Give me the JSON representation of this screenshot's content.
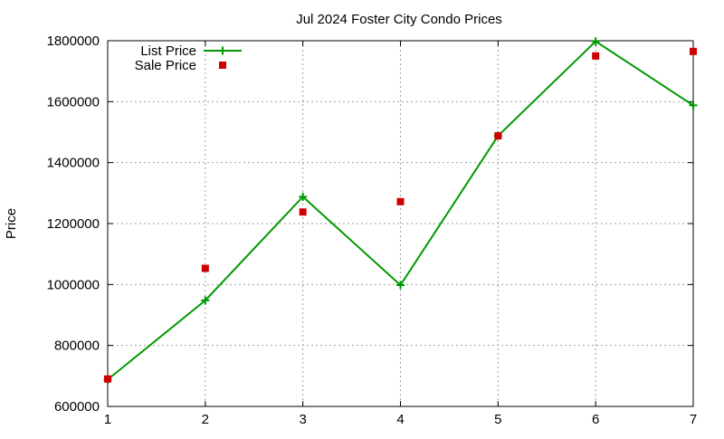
{
  "chart_data": {
    "type": "line",
    "title": "Jul 2024 Foster City Condo Prices",
    "xlabel": "",
    "ylabel": "Price",
    "x": [
      1,
      2,
      3,
      4,
      5,
      6,
      7
    ],
    "xlim": [
      1,
      7
    ],
    "ylim": [
      600000,
      1800000
    ],
    "x_ticks": [
      "1",
      "2",
      "3",
      "4",
      "5",
      "6",
      "7"
    ],
    "y_ticks": [
      "600000",
      "800000",
      "1000000",
      "1200000",
      "1400000",
      "1600000",
      "1800000"
    ],
    "grid": true,
    "legend_position": "top-left",
    "series": [
      {
        "name": "List Price",
        "style": "line-with-plus-markers",
        "color": "#009900",
        "values": [
          688000,
          948000,
          1288000,
          998000,
          1488000,
          1798000,
          1588000
        ]
      },
      {
        "name": "Sale Price",
        "style": "square-markers",
        "color": "#cc0000",
        "values": [
          690000,
          1053000,
          1238000,
          1272000,
          1488000,
          1750000,
          1765000
        ]
      }
    ]
  }
}
